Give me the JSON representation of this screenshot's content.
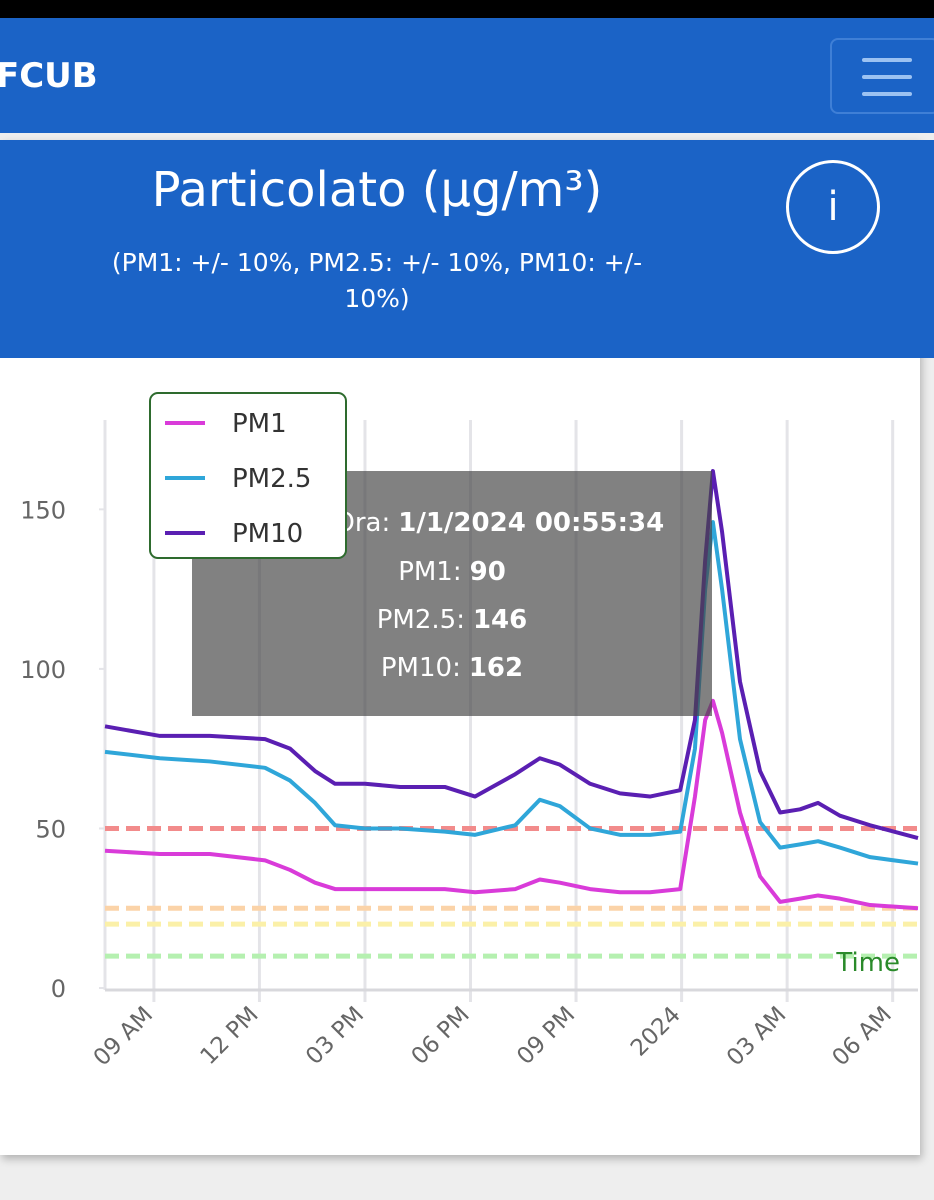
{
  "navbar": {
    "brand": "FCUB"
  },
  "card": {
    "title": "Particolato (µg/m³)",
    "subtitle": "(PM1: +/- 10%, PM2.5: +/- 10%, PM10: +/- 10%)",
    "info": "i"
  },
  "chart_data": {
    "type": "line",
    "x": [
      7.61,
      9.17,
      10.59,
      12.16,
      12.87,
      13.58,
      14.15,
      15.0,
      16.0,
      17.27,
      18.13,
      19.27,
      19.97,
      20.54,
      21.4,
      22.25,
      23.1,
      23.96,
      24.38,
      24.67,
      24.89,
      25.15,
      25.66,
      26.23,
      26.8,
      27.37,
      27.88,
      28.5,
      29.36,
      30.72
    ],
    "series": [
      {
        "name": "PM1",
        "color": "#d93bd9",
        "values": [
          43,
          42,
          42,
          40,
          37,
          33,
          31,
          31,
          31,
          31,
          30,
          31,
          34,
          33,
          31,
          30,
          30,
          31,
          60,
          84,
          90,
          80,
          55,
          35,
          27,
          28,
          29,
          28,
          26,
          25
        ]
      },
      {
        "name": "PM2.5",
        "color": "#2fa6d9",
        "values": [
          74,
          72,
          71,
          69,
          65,
          58,
          51,
          50,
          50,
          49,
          48,
          51,
          59,
          57,
          50,
          48,
          48,
          49,
          75,
          125,
          146,
          125,
          78,
          52,
          44,
          45,
          46,
          44,
          41,
          39
        ]
      },
      {
        "name": "PM10",
        "color": "#5a1fb2",
        "values": [
          82,
          79,
          79,
          78,
          75,
          68,
          64,
          64,
          63,
          63,
          60,
          67,
          72,
          70,
          64,
          61,
          60,
          62,
          84,
          134,
          162,
          143,
          96,
          68,
          55,
          56,
          58,
          54,
          51,
          47
        ]
      }
    ],
    "xlim": [
      7.61,
      30.72
    ],
    "xticks": [
      {
        "value": 9,
        "label": "09 AM"
      },
      {
        "value": 12,
        "label": "12 PM"
      },
      {
        "value": 15,
        "label": "03 PM"
      },
      {
        "value": 18,
        "label": "06 PM"
      },
      {
        "value": 21,
        "label": "09 PM"
      },
      {
        "value": 24,
        "label": "2024"
      },
      {
        "value": 27,
        "label": "03 AM"
      },
      {
        "value": 30,
        "label": "06 AM"
      }
    ],
    "ylim": [
      0,
      178
    ],
    "yticks": [
      0,
      50,
      100,
      150
    ],
    "x_label": "Time",
    "thresholds": [
      {
        "value": 50,
        "color": "#f28b8b"
      },
      {
        "value": 25,
        "color": "#fbd3a8"
      },
      {
        "value": 20,
        "color": "#fbf0a8"
      },
      {
        "value": 10,
        "color": "#b5f0b0"
      }
    ],
    "tooltip": {
      "date_label": "Data e Ora:",
      "date": "1/1/2024 00:55:34",
      "rows": [
        {
          "label": "PM1:",
          "value": 90
        },
        {
          "label": "PM2.5:",
          "value": 146
        },
        {
          "label": "PM10:",
          "value": 162
        }
      ]
    }
  }
}
